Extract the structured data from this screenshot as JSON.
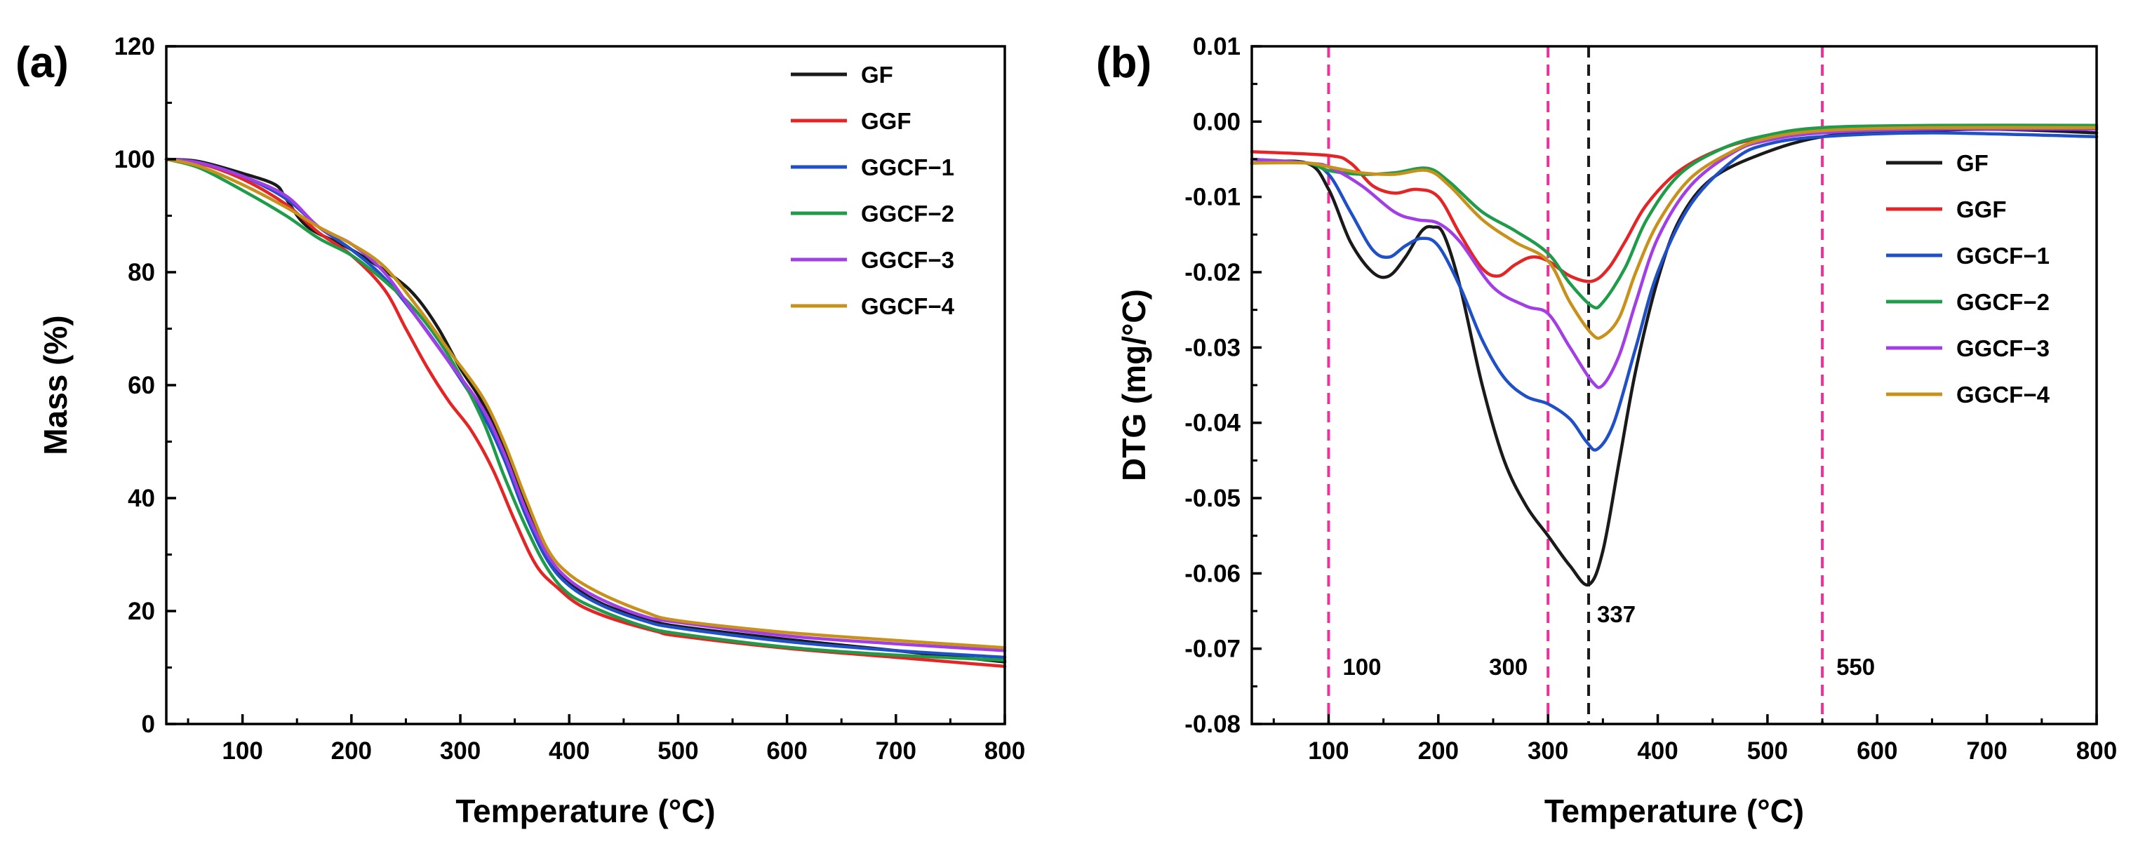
{
  "chart_data": [
    {
      "type": "line",
      "panel_label": "(a)",
      "xlabel": "Temperature (°C)",
      "ylabel": "Mass (%)",
      "xlim": [
        30,
        800
      ],
      "ylim": [
        0,
        120
      ],
      "xticks": [
        100,
        200,
        300,
        400,
        500,
        600,
        700,
        800
      ],
      "yticks": [
        0,
        20,
        40,
        60,
        80,
        100,
        120
      ],
      "legend_position": "top-right",
      "series": [
        {
          "name": "GF",
          "color": "#1a1a1a",
          "x": [
            30,
            60,
            100,
            130,
            140,
            160,
            200,
            240,
            260,
            280,
            300,
            320,
            340,
            360,
            380,
            400,
            430,
            470,
            500,
            600,
            700,
            800
          ],
          "y": [
            100,
            99.6,
            97.5,
            95.5,
            93,
            88,
            84,
            79,
            75.5,
            70,
            63,
            57,
            49,
            39,
            30,
            25,
            21.3,
            18.6,
            17.3,
            15,
            13,
            11
          ]
        },
        {
          "name": "GGF",
          "color": "#e52525",
          "x": [
            30,
            60,
            100,
            140,
            170,
            200,
            230,
            250,
            270,
            290,
            310,
            330,
            350,
            370,
            390,
            410,
            440,
            480,
            500,
            600,
            700,
            800
          ],
          "y": [
            100,
            99.3,
            96.5,
            92,
            87,
            83,
            77,
            70,
            63,
            57,
            52,
            45,
            36,
            28,
            24,
            21,
            18.6,
            16.4,
            15.6,
            13.4,
            11.8,
            10.2
          ]
        },
        {
          "name": "GGCF−1",
          "color": "#1f50c8",
          "x": [
            30,
            60,
            100,
            140,
            170,
            200,
            230,
            260,
            290,
            320,
            340,
            360,
            380,
            400,
            430,
            470,
            500,
            600,
            700,
            800
          ],
          "y": [
            100,
            99.4,
            97,
            93,
            88,
            84,
            79,
            72,
            64,
            55,
            47,
            37,
            29,
            24.5,
            21,
            18.2,
            17,
            14.6,
            13,
            11.8
          ]
        },
        {
          "name": "GGCF−2",
          "color": "#1f9c4a",
          "x": [
            30,
            60,
            100,
            140,
            170,
            200,
            230,
            260,
            290,
            320,
            340,
            360,
            380,
            400,
            430,
            470,
            500,
            600,
            700,
            800
          ],
          "y": [
            100,
            98.5,
            94.5,
            90,
            86,
            83,
            78.5,
            73,
            65,
            54,
            44,
            35,
            27.5,
            23,
            20,
            17.2,
            16,
            13.6,
            12.2,
            11.3
          ]
        },
        {
          "name": "GGCF−3",
          "color": "#a23ee6",
          "x": [
            30,
            60,
            100,
            140,
            170,
            200,
            230,
            260,
            290,
            320,
            340,
            360,
            380,
            400,
            430,
            470,
            500,
            600,
            700,
            800
          ],
          "y": [
            100,
            99.4,
            97,
            93.5,
            88,
            85,
            80,
            72,
            64,
            56,
            48,
            38,
            30,
            25.5,
            22,
            19,
            18,
            15.6,
            14.2,
            13
          ]
        },
        {
          "name": "GGCF−4",
          "color": "#c8911a",
          "x": [
            30,
            60,
            100,
            140,
            170,
            200,
            230,
            260,
            290,
            320,
            340,
            360,
            380,
            400,
            430,
            470,
            500,
            600,
            700,
            800
          ],
          "y": [
            100,
            98.8,
            95.5,
            91.5,
            88,
            85,
            81,
            74,
            66,
            58,
            50,
            40,
            31,
            26.5,
            23,
            19.8,
            18.3,
            16.2,
            14.8,
            13.5
          ]
        }
      ]
    },
    {
      "type": "line",
      "panel_label": "(b)",
      "xlabel": "Temperature (°C)",
      "ylabel": "DTG (mg/°C)",
      "xlim": [
        30,
        800
      ],
      "ylim": [
        -0.08,
        0.01
      ],
      "xticks": [
        100,
        200,
        300,
        400,
        500,
        600,
        700,
        800
      ],
      "yticks": [
        -0.08,
        -0.07,
        -0.06,
        -0.05,
        -0.04,
        -0.03,
        -0.02,
        -0.01,
        0.0,
        0.01
      ],
      "ytick_labels": [
        "-0.08",
        "-0.07",
        "-0.06",
        "-0.05",
        "-0.04",
        "-0.03",
        "-0.02",
        "-0.01",
        "0.00",
        "0.01"
      ],
      "legend_position": "center-right",
      "reference_lines": [
        {
          "x": 100,
          "label": "100",
          "color": "#f0309a"
        },
        {
          "x": 300,
          "label": "300",
          "color": "#f0309a"
        },
        {
          "x": 337,
          "label": "337",
          "color": "#1a1a1a"
        },
        {
          "x": 550,
          "label": "550",
          "color": "#f0309a"
        }
      ],
      "series": [
        {
          "name": "GF",
          "color": "#1a1a1a",
          "x": [
            30,
            80,
            100,
            120,
            140,
            155,
            170,
            185,
            195,
            205,
            220,
            240,
            260,
            280,
            300,
            320,
            337,
            350,
            365,
            380,
            400,
            420,
            450,
            500,
            550,
            600,
            700,
            800
          ],
          "y": [
            -0.0055,
            -0.0055,
            -0.009,
            -0.016,
            -0.02,
            -0.0205,
            -0.018,
            -0.0145,
            -0.014,
            -0.015,
            -0.022,
            -0.035,
            -0.045,
            -0.051,
            -0.055,
            -0.059,
            -0.0615,
            -0.057,
            -0.045,
            -0.033,
            -0.021,
            -0.013,
            -0.0075,
            -0.004,
            -0.002,
            -0.0015,
            -0.001,
            -0.0015
          ]
        },
        {
          "name": "GGF",
          "color": "#e52525",
          "x": [
            30,
            100,
            120,
            140,
            160,
            180,
            200,
            220,
            240,
            255,
            270,
            285,
            300,
            320,
            340,
            355,
            370,
            390,
            420,
            460,
            500,
            550,
            650,
            800
          ],
          "y": [
            -0.004,
            -0.0045,
            -0.0055,
            -0.0085,
            -0.0095,
            -0.009,
            -0.01,
            -0.015,
            -0.0195,
            -0.0205,
            -0.019,
            -0.018,
            -0.0185,
            -0.0205,
            -0.0212,
            -0.0195,
            -0.016,
            -0.011,
            -0.0065,
            -0.0035,
            -0.002,
            -0.001,
            -0.0006,
            -0.0008
          ]
        },
        {
          "name": "GGCF−1",
          "color": "#1f50c8",
          "x": [
            30,
            80,
            100,
            120,
            140,
            155,
            170,
            185,
            200,
            220,
            240,
            260,
            280,
            300,
            320,
            335,
            345,
            360,
            380,
            400,
            430,
            470,
            500,
            550,
            650,
            800
          ],
          "y": [
            -0.0055,
            -0.0055,
            -0.007,
            -0.012,
            -0.017,
            -0.018,
            -0.0165,
            -0.0155,
            -0.0165,
            -0.022,
            -0.029,
            -0.034,
            -0.0365,
            -0.0375,
            -0.0395,
            -0.0425,
            -0.0435,
            -0.04,
            -0.03,
            -0.02,
            -0.011,
            -0.005,
            -0.003,
            -0.002,
            -0.0015,
            -0.002
          ]
        },
        {
          "name": "GGCF−2",
          "color": "#1f9c4a",
          "x": [
            30,
            80,
            100,
            130,
            160,
            190,
            210,
            240,
            270,
            300,
            320,
            340,
            350,
            370,
            390,
            420,
            460,
            500,
            550,
            650,
            800
          ],
          "y": [
            -0.005,
            -0.0055,
            -0.0065,
            -0.007,
            -0.0068,
            -0.0062,
            -0.008,
            -0.012,
            -0.0145,
            -0.0175,
            -0.0215,
            -0.0245,
            -0.024,
            -0.0195,
            -0.013,
            -0.007,
            -0.0035,
            -0.0018,
            -0.0008,
            -0.0005,
            -0.0005
          ]
        },
        {
          "name": "GGCF−3",
          "color": "#a23ee6",
          "x": [
            30,
            80,
            100,
            130,
            160,
            180,
            200,
            220,
            250,
            280,
            300,
            320,
            340,
            350,
            365,
            380,
            400,
            430,
            470,
            500,
            550,
            650,
            800
          ],
          "y": [
            -0.005,
            -0.0055,
            -0.006,
            -0.0085,
            -0.012,
            -0.013,
            -0.0135,
            -0.016,
            -0.022,
            -0.0245,
            -0.0255,
            -0.03,
            -0.0345,
            -0.035,
            -0.031,
            -0.024,
            -0.0155,
            -0.0085,
            -0.004,
            -0.0025,
            -0.0015,
            -0.001,
            -0.001
          ]
        },
        {
          "name": "GGCF−4",
          "color": "#c8911a",
          "x": [
            30,
            80,
            100,
            130,
            160,
            190,
            210,
            240,
            270,
            300,
            320,
            340,
            350,
            365,
            380,
            400,
            430,
            470,
            500,
            550,
            650,
            800
          ],
          "y": [
            -0.0055,
            -0.0055,
            -0.006,
            -0.0068,
            -0.007,
            -0.0065,
            -0.0085,
            -0.013,
            -0.016,
            -0.0185,
            -0.024,
            -0.0282,
            -0.0285,
            -0.026,
            -0.02,
            -0.0135,
            -0.0075,
            -0.0038,
            -0.0022,
            -0.0012,
            -0.0008,
            -0.0008
          ]
        }
      ]
    }
  ]
}
